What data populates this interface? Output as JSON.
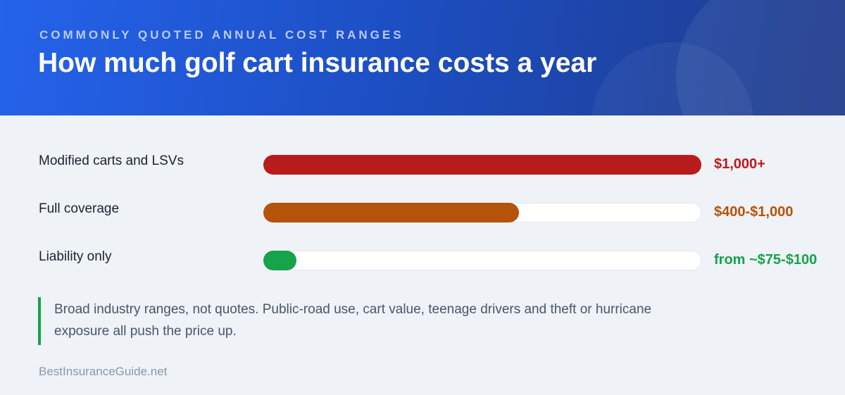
{
  "header": {
    "eyebrow": "COMMONLY QUOTED ANNUAL COST RANGES",
    "title": "How much golf cart insurance costs a year"
  },
  "chart_data": {
    "type": "bar",
    "orientation": "horizontal",
    "x_range": [
      0,
      1000
    ],
    "categories": [
      "Modified carts and LSVs",
      "Full coverage",
      "Liability only"
    ],
    "series": [
      {
        "values": [
          1000,
          584,
          75
        ]
      }
    ],
    "value_labels": [
      "$1,000+",
      "$400-$1,000",
      "from ~$75-$100"
    ],
    "colors": [
      "#b91c1c",
      "#b45309",
      "#16a34a"
    ]
  },
  "note": "Broad industry ranges, not quotes. Public-road use, cart value, teenage drivers and theft or hurricane exposure all push the price up.",
  "footer": "BestInsuranceGuide.net"
}
